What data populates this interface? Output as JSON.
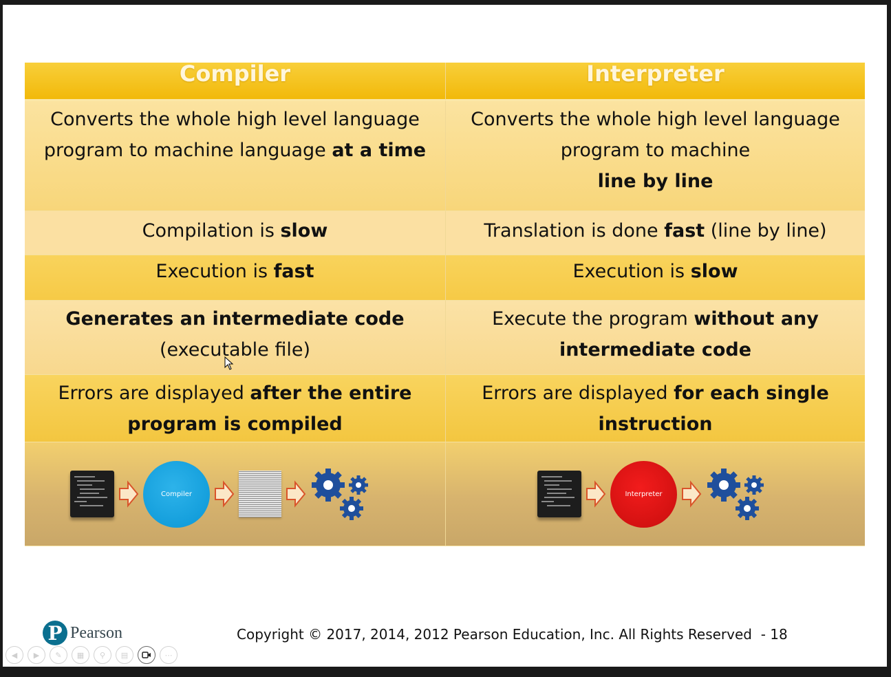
{
  "table": {
    "headers": {
      "left": "Compiler",
      "right": "Interpreter"
    },
    "rows": [
      {
        "left": {
          "a": "Converts the whole high level language program to machine language ",
          "b": "at a time"
        },
        "right": {
          "a": "Converts the whole high level language program to machine",
          "b": "line by line"
        }
      },
      {
        "left": {
          "a": "Compilation is ",
          "b": "slow"
        },
        "right": {
          "a": "Translation is done ",
          "b": "fast",
          "c": " (line by line)"
        }
      },
      {
        "left": {
          "a": "Execution is ",
          "b": "fast"
        },
        "right": {
          "a": "Execution is ",
          "b": "slow"
        }
      },
      {
        "left": {
          "b": "Generates an intermediate code",
          "c": "(executable file)"
        },
        "right": {
          "a": "Execute the program ",
          "b": "without any intermediate code"
        }
      },
      {
        "left": {
          "a": "Errors are displayed ",
          "b": "after the entire program is compiled"
        },
        "right": {
          "a": "Errors are displayed ",
          "b": "for each single instruction"
        }
      }
    ],
    "diagram": {
      "compiler_label": "Compiler",
      "interpreter_label": "Interpreter"
    }
  },
  "footer": {
    "brand": "Pearson",
    "copyright": "Copyright © 2017, 2014, 2012 Pearson Education, Inc. All Rights Reserved  - 18"
  },
  "controls": [
    "previous",
    "next",
    "pen",
    "slides",
    "zoom",
    "subtitles",
    "video",
    "more"
  ],
  "colors": {
    "header": "#f2b90a",
    "compiler_circle": "#0a96d6",
    "interpreter_circle": "#c80d0d",
    "gear": "#1f4f9c",
    "arrow": "#d9542a"
  }
}
